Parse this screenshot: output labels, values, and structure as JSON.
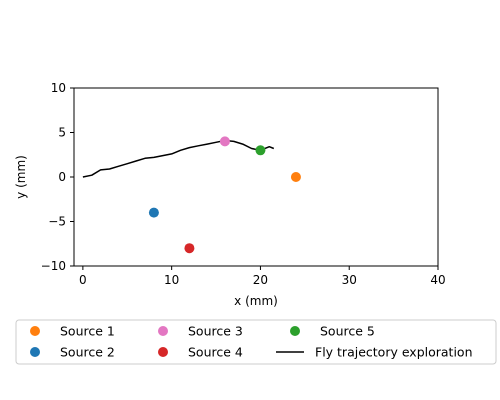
{
  "chart_data": {
    "type": "scatter",
    "title": "",
    "xlabel": "x (mm)",
    "ylabel": "y (mm)",
    "xlim": [
      -1,
      40
    ],
    "ylim": [
      -10,
      10
    ],
    "xticks": [
      "0",
      "10",
      "20",
      "30",
      "40"
    ],
    "yticks": [
      "10",
      "5",
      "0",
      "−5",
      "−10"
    ],
    "xtick_values": [
      0,
      10,
      20,
      30,
      40
    ],
    "ytick_values": [
      10,
      5,
      0,
      -5,
      -10
    ],
    "grid": false,
    "legend_position": "bottom",
    "series": [
      {
        "name": "Source 1",
        "type": "scatter",
        "color": "#ff7f0e",
        "points": [
          [
            24,
            0
          ]
        ]
      },
      {
        "name": "Source 2",
        "type": "scatter",
        "color": "#1f77b4",
        "points": [
          [
            8,
            -4
          ]
        ]
      },
      {
        "name": "Source 3",
        "type": "scatter",
        "color": "#e377c2",
        "points": [
          [
            16,
            4
          ]
        ]
      },
      {
        "name": "Source 4",
        "type": "scatter",
        "color": "#d62728",
        "points": [
          [
            12,
            -8
          ]
        ]
      },
      {
        "name": "Source 5",
        "type": "scatter",
        "color": "#2ca02c",
        "points": [
          [
            20,
            3
          ]
        ]
      },
      {
        "name": "Fly trajectory exploration",
        "type": "line",
        "color": "#000000",
        "points": [
          [
            0,
            0
          ],
          [
            1,
            0.2
          ],
          [
            2,
            0.8
          ],
          [
            3,
            0.9
          ],
          [
            4,
            1.2
          ],
          [
            5,
            1.5
          ],
          [
            6,
            1.8
          ],
          [
            7,
            2.1
          ],
          [
            8,
            2.2
          ],
          [
            9,
            2.4
          ],
          [
            10,
            2.6
          ],
          [
            11,
            3.0
          ],
          [
            12,
            3.3
          ],
          [
            13,
            3.5
          ],
          [
            14,
            3.7
          ],
          [
            15,
            3.9
          ],
          [
            16,
            4.1
          ],
          [
            17,
            4.0
          ],
          [
            18,
            3.7
          ],
          [
            19,
            3.2
          ],
          [
            20,
            3.0
          ],
          [
            21,
            3.4
          ],
          [
            21.5,
            3.2
          ]
        ]
      }
    ]
  }
}
